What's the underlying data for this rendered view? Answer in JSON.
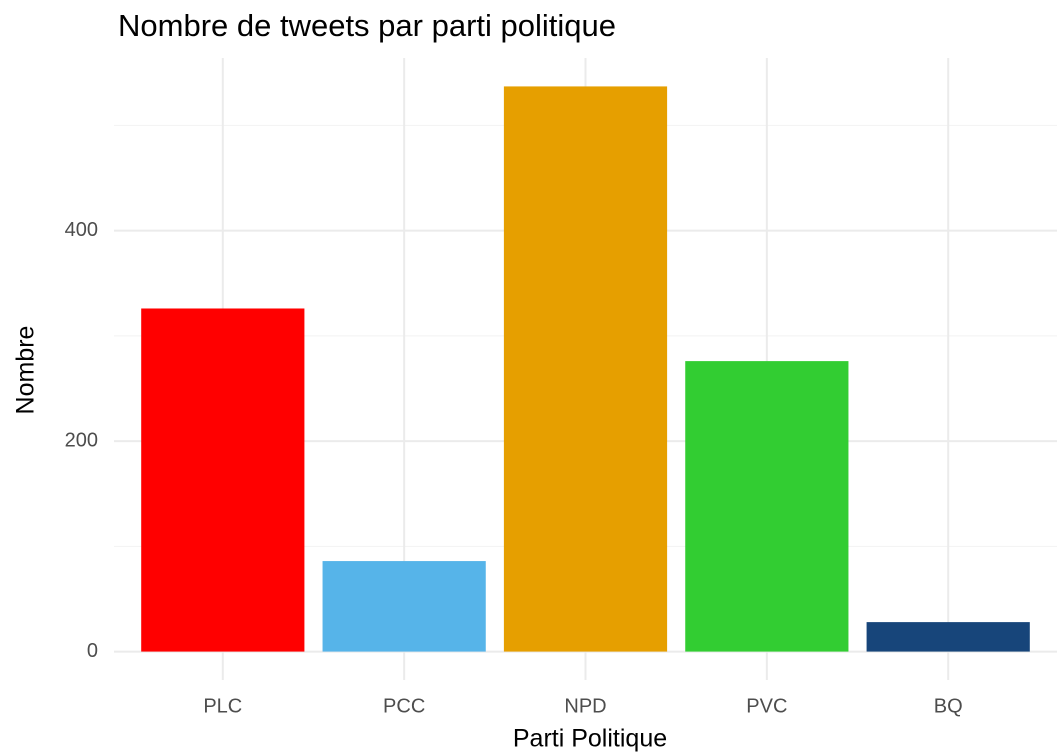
{
  "chart_data": {
    "type": "bar",
    "title": "Nombre de tweets par parti politique",
    "x_label": "Parti Politique",
    "y_label": "Nombre",
    "categories": [
      "PLC",
      "PCC",
      "NPD",
      "PVC",
      "BQ"
    ],
    "values": [
      326,
      86,
      537,
      276,
      28
    ],
    "colors": [
      "#ff0000",
      "#56b4e9",
      "#e69f00",
      "#32cd32",
      "#17457a"
    ],
    "ylim": [
      -27,
      564
    ],
    "yticks": [
      0,
      200,
      400
    ],
    "y_minor_ticks": [
      100,
      300,
      500
    ],
    "grid": true
  }
}
